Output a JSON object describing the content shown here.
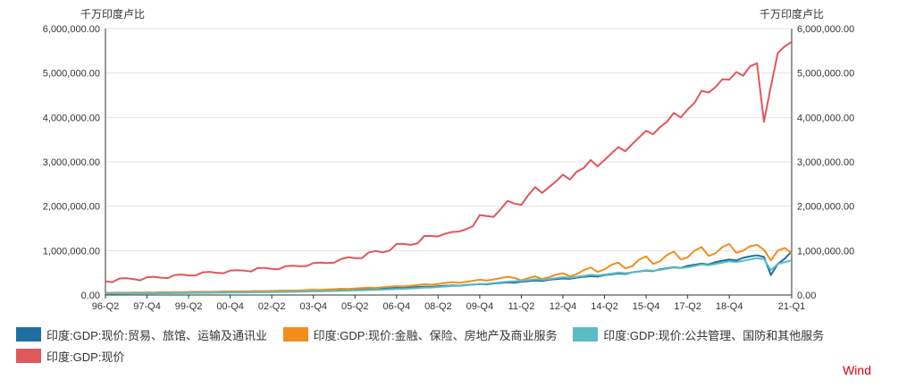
{
  "chart_data": {
    "type": "line",
    "y_unit_left": "千万印度卢比",
    "y_unit_right": "千万印度卢比",
    "ylim": [
      0,
      6000000
    ],
    "y_ticks": [
      "0.00",
      "1,000,000.00",
      "2,000,000.00",
      "3,000,000.00",
      "4,000,000.00",
      "5,000,000.00",
      "6,000,000.00"
    ],
    "y_tick_values": [
      0,
      1000000,
      2000000,
      3000000,
      4000000,
      5000000,
      6000000
    ],
    "x_tick_labels": [
      "96-Q2",
      "97-Q4",
      "99-Q2",
      "00-Q4",
      "02-Q2",
      "03-Q4",
      "05-Q2",
      "06-Q4",
      "08-Q2",
      "09-Q4",
      "11-Q2",
      "12-Q4",
      "14-Q2",
      "15-Q4",
      "17-Q2",
      "18-Q4",
      "21-Q1"
    ],
    "x_tick_index": [
      0,
      6,
      12,
      18,
      24,
      30,
      36,
      42,
      48,
      54,
      60,
      66,
      72,
      78,
      84,
      90,
      99
    ],
    "x_start": "1996-Q2",
    "x_end": "2021-Q1",
    "grid": true,
    "legend_position": "bottom",
    "source": "Wind",
    "series": [
      {
        "name": "印度:GDP:现价:贸易、旅馆、运输及通讯业",
        "color": "#1f6fa3",
        "values": [
          45000,
          47000,
          50000,
          48000,
          52000,
          54000,
          56000,
          54000,
          58000,
          60000,
          62000,
          60000,
          65000,
          67000,
          70000,
          68000,
          72000,
          75000,
          78000,
          76000,
          80000,
          83000,
          86000,
          84000,
          90000,
          93000,
          96000,
          94000,
          100000,
          104000,
          108000,
          106000,
          115000,
          119000,
          124000,
          121000,
          131000,
          136000,
          142000,
          139000,
          150000,
          156000,
          163000,
          159000,
          172000,
          180000,
          188000,
          184000,
          198000,
          206000,
          215000,
          210000,
          226000,
          236000,
          246000,
          240000,
          260000,
          272000,
          284000,
          277000,
          300000,
          313000,
          326000,
          318000,
          344000,
          358000,
          373000,
          364000,
          393000,
          409000,
          426000,
          415000,
          448000,
          466000,
          485000,
          472000,
          510000,
          530000,
          552000,
          537000,
          580000,
          602000,
          626000,
          609000,
          658000,
          682000,
          708000,
          688000,
          742000,
          770000,
          800000,
          777000,
          838000,
          870000,
          895000,
          860000,
          450000,
          700000,
          820000,
          980000
        ]
      },
      {
        "name": "印度:GDP:现价:金融、保险、房地产及商业服务",
        "color": "#f28e1c",
        "values": [
          40000,
          42000,
          45000,
          44000,
          48000,
          50000,
          52000,
          50000,
          55000,
          58000,
          60000,
          58000,
          62000,
          65000,
          68000,
          66000,
          71000,
          74000,
          77000,
          75000,
          80000,
          84000,
          88000,
          86000,
          92000,
          96000,
          100000,
          98000,
          104000,
          110000,
          118000,
          114000,
          125000,
          132000,
          140000,
          135000,
          148000,
          156000,
          165000,
          158000,
          175000,
          186000,
          200000,
          192000,
          210000,
          225000,
          245000,
          232000,
          250000,
          270000,
          290000,
          275000,
          295000,
          320000,
          345000,
          325000,
          350000,
          380000,
          410000,
          385000,
          330000,
          380000,
          420000,
          360000,
          400000,
          460000,
          490000,
          420000,
          470000,
          560000,
          620000,
          520000,
          580000,
          680000,
          730000,
          600000,
          650000,
          800000,
          870000,
          700000,
          760000,
          900000,
          980000,
          800000,
          850000,
          1000000,
          1080000,
          880000,
          940000,
          1080000,
          1150000,
          950000,
          1000000,
          1100000,
          1130000,
          1020000,
          780000,
          1000000,
          1060000,
          940000
        ]
      },
      {
        "name": "印度:GDP:现价:公共管理、国防和其他服务",
        "color": "#5bbcc3",
        "values": [
          30000,
          31000,
          32000,
          33000,
          34000,
          35000,
          36000,
          37000,
          39000,
          40000,
          42000,
          43000,
          45000,
          47000,
          49000,
          50000,
          52000,
          54000,
          56000,
          57000,
          59000,
          61000,
          63000,
          64000,
          66000,
          68000,
          71000,
          72000,
          75000,
          78000,
          82000,
          83000,
          87000,
          91000,
          96000,
          97000,
          102000,
          107000,
          113000,
          115000,
          122000,
          128000,
          136000,
          138000,
          147000,
          155000,
          165000,
          168000,
          180000,
          190000,
          202000,
          206000,
          220000,
          233000,
          248000,
          252000,
          270000,
          285000,
          303000,
          309000,
          320000,
          335000,
          355000,
          345000,
          360000,
          380000,
          400000,
          390000,
          410000,
          430000,
          455000,
          440000,
          460000,
          480000,
          505000,
          490000,
          510000,
          535000,
          560000,
          545000,
          565000,
          590000,
          620000,
          605000,
          625000,
          655000,
          690000,
          670000,
          700000,
          730000,
          760000,
          740000,
          770000,
          800000,
          830000,
          810000,
          560000,
          700000,
          740000,
          780000
        ]
      },
      {
        "name": "印度:GDP:现价",
        "color": "#e0575e",
        "values": [
          310000,
          290000,
          370000,
          380000,
          360000,
          330000,
          400000,
          410000,
          390000,
          380000,
          450000,
          460000,
          440000,
          440000,
          510000,
          520000,
          500000,
          490000,
          550000,
          560000,
          550000,
          530000,
          610000,
          610000,
          590000,
          580000,
          650000,
          660000,
          650000,
          650000,
          720000,
          730000,
          720000,
          730000,
          810000,
          850000,
          830000,
          830000,
          960000,
          990000,
          960000,
          1000000,
          1150000,
          1150000,
          1130000,
          1160000,
          1330000,
          1330000,
          1320000,
          1380000,
          1420000,
          1430000,
          1480000,
          1550000,
          1800000,
          1780000,
          1760000,
          1930000,
          2120000,
          2060000,
          2030000,
          2250000,
          2430000,
          2300000,
          2430000,
          2560000,
          2710000,
          2600000,
          2780000,
          2860000,
          3040000,
          2900000,
          3040000,
          3190000,
          3330000,
          3240000,
          3400000,
          3550000,
          3700000,
          3620000,
          3780000,
          3900000,
          4100000,
          4000000,
          4180000,
          4330000,
          4600000,
          4560000,
          4680000,
          4860000,
          4850000,
          5020000,
          4940000,
          5150000,
          5220000,
          3900000,
          4700000,
          5450000,
          5600000,
          5700000
        ]
      }
    ]
  }
}
